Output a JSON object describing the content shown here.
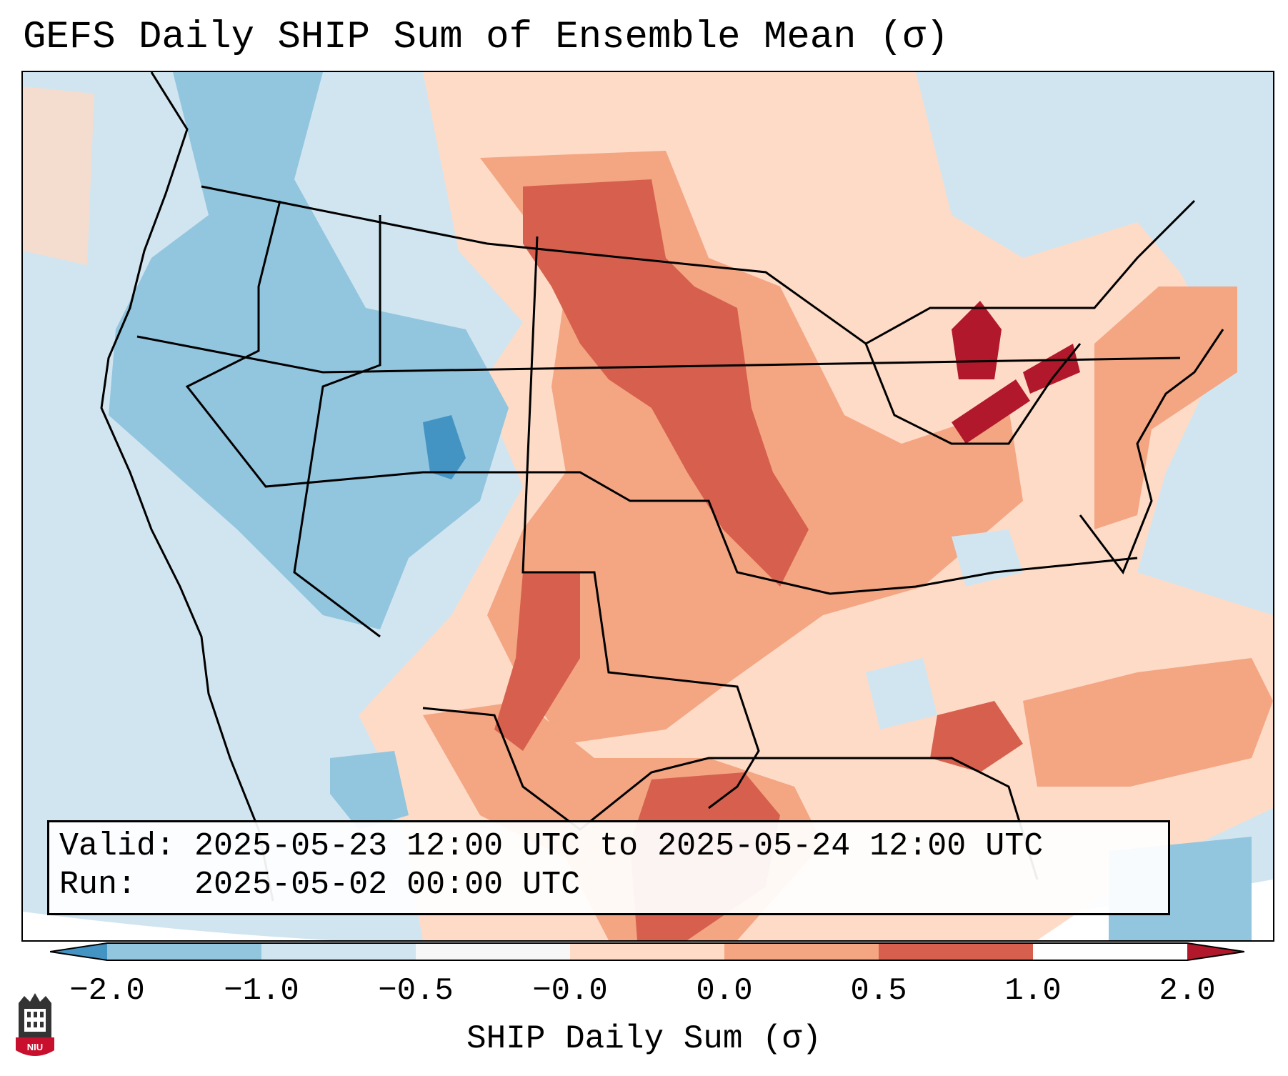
{
  "title": "GEFS Daily SHIP Sum of Ensemble Mean (σ)",
  "info": {
    "valid_label": "Valid:",
    "valid_value": "2025-05-23 12:00 UTC to 2025-05-24 12:00 UTC",
    "run_label": "Run:",
    "run_value": "2025-05-02 00:00 UTC"
  },
  "colorbar": {
    "label": "SHIP Daily Sum (σ)",
    "ticks": [
      "−2.0",
      "−1.0",
      "−0.5",
      "−0.0",
      "0.0",
      "0.5",
      "1.0",
      "2.0"
    ],
    "colors": [
      "#4393c3",
      "#92c5de",
      "#d1e5f0",
      "#f7f7f7",
      "#fddbc7",
      "#f4a582",
      "#d6604d",
      "#b2182b"
    ]
  },
  "logo": {
    "text": "NIU",
    "colors": {
      "tower": "#333333",
      "shield": "#c8102e"
    }
  },
  "map": {
    "background_color": "#d1e5f0",
    "land_positive_color": "#fddbc7",
    "moderate_color": "#f4a582",
    "strong_color": "#d6604d",
    "extreme_color": "#b2182b",
    "negative_color": "#92c5de",
    "strong_negative_color": "#4393c3"
  }
}
